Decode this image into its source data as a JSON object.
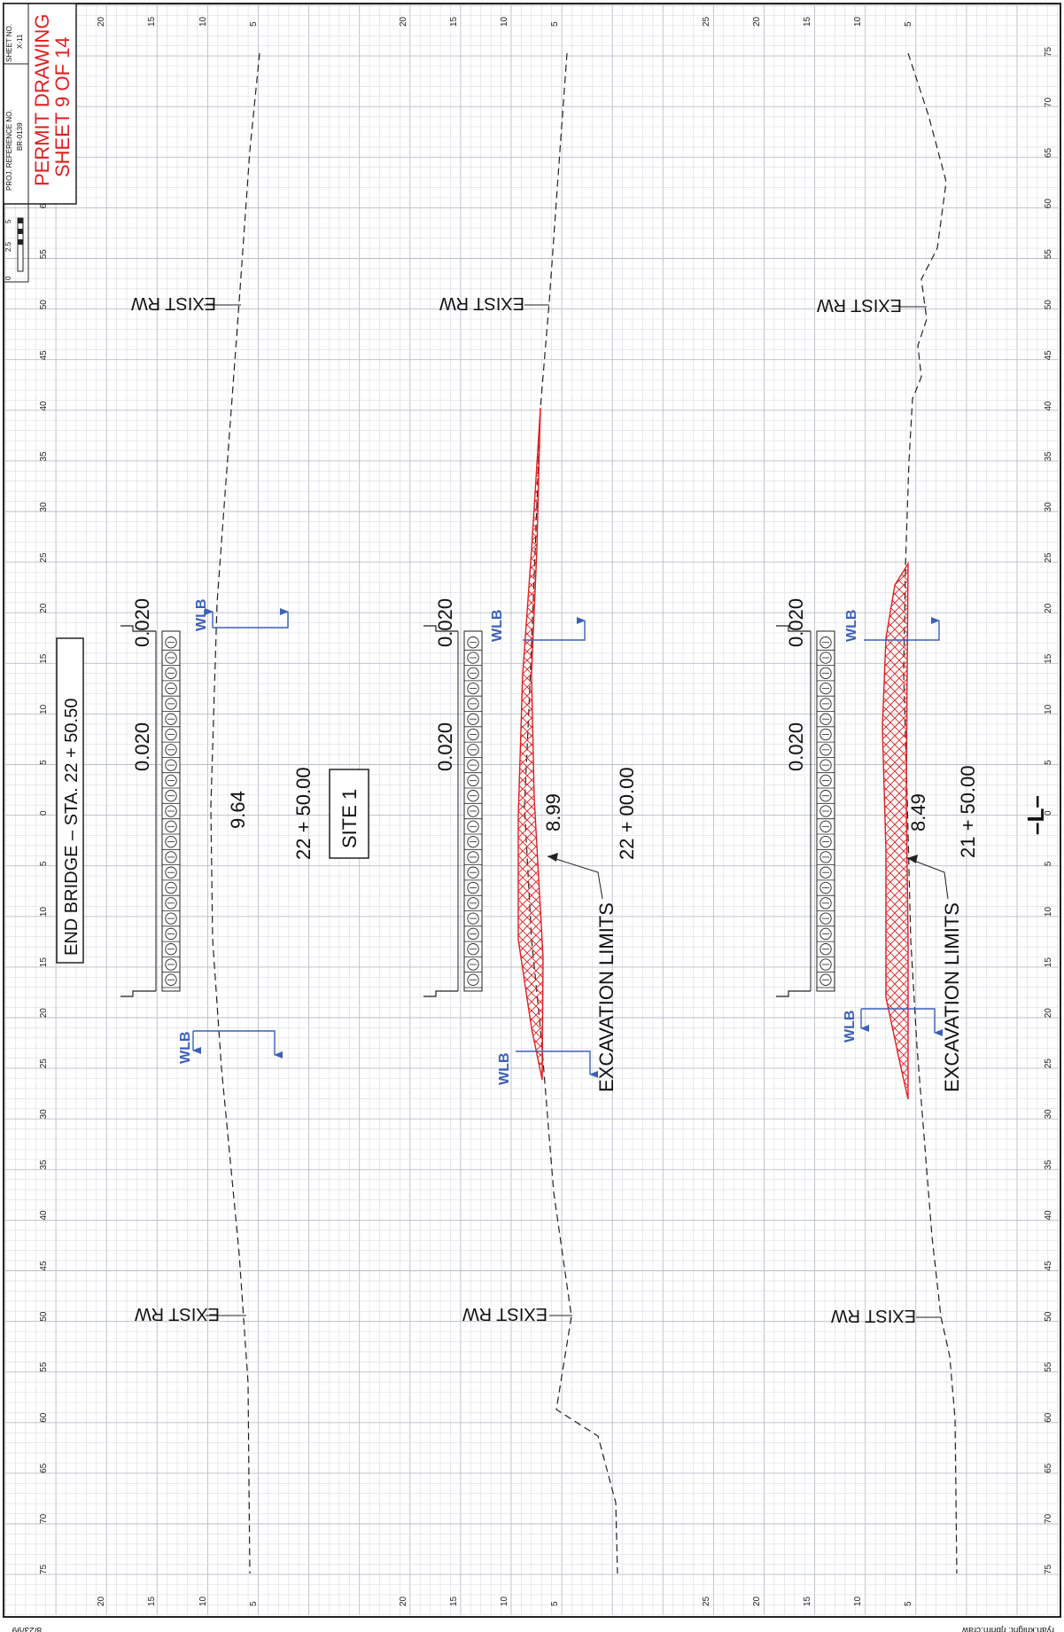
{
  "title_block": {
    "proj_ref_label": "PROJ. REFERENCE NO.",
    "proj_ref_value": "BR-0139",
    "sheet_no_label": "SHEET NO.",
    "sheet_no_value": "X-11",
    "permit_line1": "PERMIT DRAWING",
    "permit_line2": "SHEET 9 OF 14",
    "scale_labels": [
      "0",
      "2.5",
      "5"
    ]
  },
  "station_ticks": [
    "75",
    "70",
    "65",
    "60",
    "55",
    "50",
    "45",
    "40",
    "35",
    "30",
    "25",
    "20",
    "15",
    "10",
    "5",
    "0",
    "5",
    "10",
    "15",
    "20",
    "25",
    "30",
    "35",
    "40",
    "45",
    "50",
    "55",
    "60",
    "65",
    "70",
    "75"
  ],
  "elevation_ticks": {
    "panel1": [
      "20",
      "15",
      "10",
      "5"
    ],
    "panel2": [
      "20",
      "15",
      "10",
      "5"
    ],
    "panel3": [
      "25",
      "20",
      "15",
      "10",
      "5"
    ]
  },
  "labels": {
    "end_bridge": "END  BRIDGE  –  STA. 22 + 50.50",
    "site": "SITE 1",
    "alignment": "–L–",
    "exist_rw": "EXIST RW",
    "wlb": "WLB",
    "slope": "0.020",
    "excavation": "EXCAVATION   LIMITS",
    "date": "8/23/99",
    "footer": "ryan.knight: rjbhrn.craw"
  },
  "sections": [
    {
      "station": "22 + 50.00",
      "elevation": "9.64"
    },
    {
      "station": "22 + 00.00",
      "elevation": "8.99"
    },
    {
      "station": "21 + 50.00",
      "elevation": "8.49"
    }
  ],
  "colors": {
    "grid": "#d9dde3",
    "wlb_blue": "#3c5fb8",
    "excavation_red": "#e02020"
  }
}
